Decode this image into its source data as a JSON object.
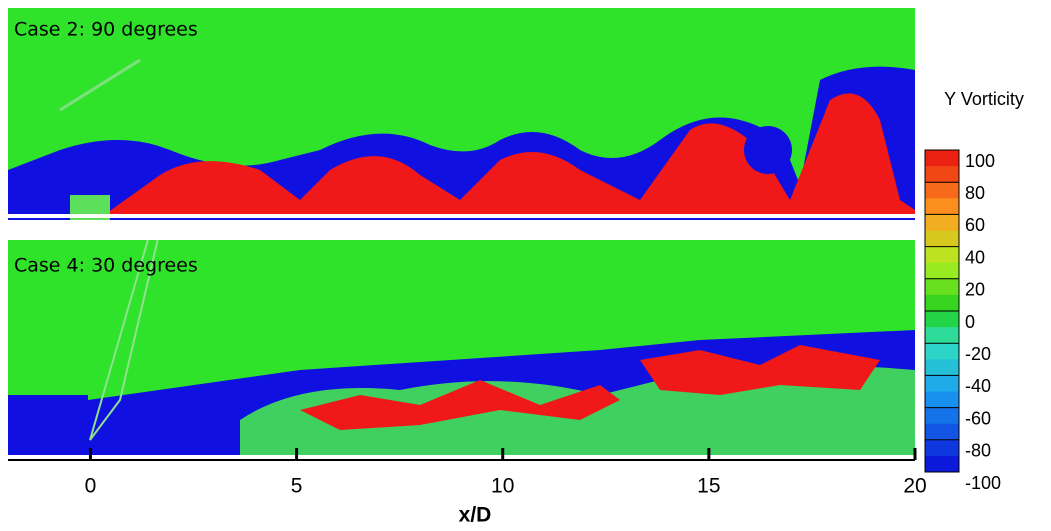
{
  "chart_data": {
    "type": "contour",
    "xlabel": "x/D",
    "xlim": [
      -2,
      20
    ],
    "xticks": [
      0,
      5,
      10,
      15,
      20
    ],
    "panels": [
      {
        "title": "Case 2: 90 degrees"
      },
      {
        "title": "Case 4: 30 degrees"
      }
    ],
    "colorbar": {
      "title": "Y Vorticity",
      "lim": [
        -100,
        100
      ],
      "ticks": [
        100,
        80,
        60,
        40,
        20,
        0,
        -20,
        -40,
        -60,
        -80,
        -100
      ]
    }
  }
}
